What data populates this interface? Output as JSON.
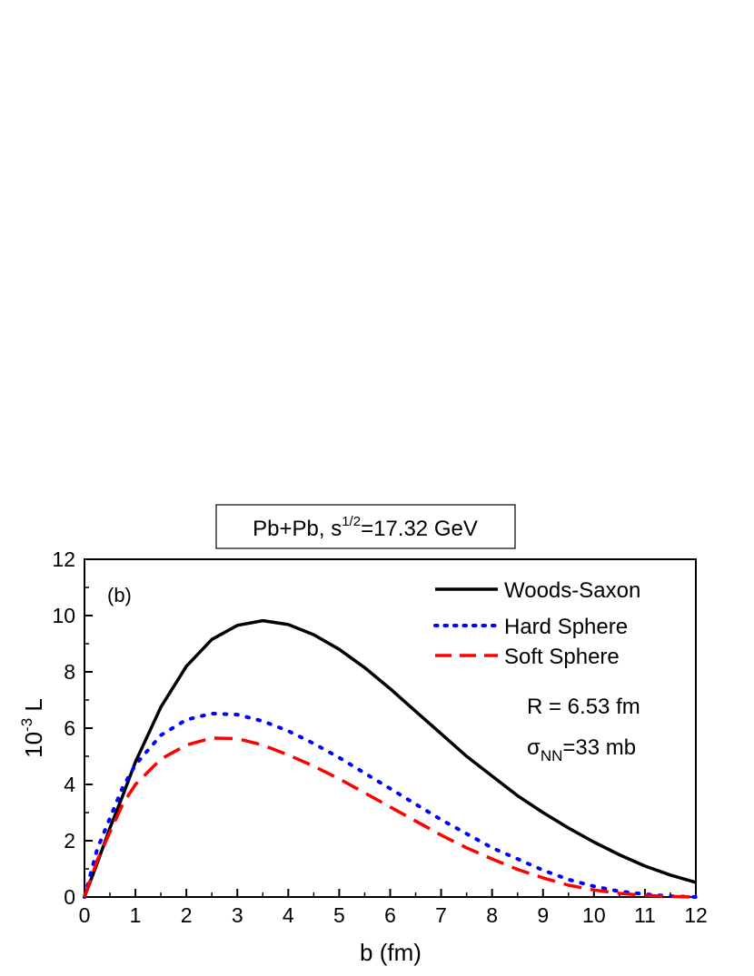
{
  "chart_data": {
    "type": "line",
    "title_box": {
      "base": "Pb+Pb, s",
      "sup": "1/2",
      "rest": "=17.32 GeV"
    },
    "panel_label": "(b)",
    "xlabel": "b (fm)",
    "ylabel": {
      "prefix": "10",
      "sup": "-3",
      "suffix": " L"
    },
    "xlim": [
      0,
      12
    ],
    "ylim": [
      0,
      12
    ],
    "xticks": [
      "0",
      "1",
      "2",
      "3",
      "4",
      "5",
      "6",
      "7",
      "8",
      "9",
      "10",
      "11",
      "12"
    ],
    "yticks": [
      "0",
      "2",
      "4",
      "6",
      "8",
      "10",
      "12"
    ],
    "grid": false,
    "legend_position": "top-right",
    "annotations": {
      "radius": "R = 6.53 fm",
      "sigma": {
        "symbol": "σ",
        "sub": "NN",
        "rest": "=33 mb"
      }
    },
    "series": [
      {
        "name": "Woods-Saxon",
        "color": "#000000",
        "style": "solid",
        "x": [
          0,
          0.25,
          0.5,
          0.75,
          1.0,
          1.5,
          2.0,
          2.5,
          3.0,
          3.5,
          4.0,
          4.5,
          5.0,
          5.5,
          6.0,
          6.5,
          7.0,
          7.5,
          8.0,
          8.5,
          9.0,
          9.5,
          10.0,
          10.5,
          11.0,
          11.5,
          12.0
        ],
        "y": [
          0,
          1.2,
          2.45,
          3.6,
          4.8,
          6.75,
          8.2,
          9.15,
          9.65,
          9.82,
          9.68,
          9.32,
          8.8,
          8.15,
          7.4,
          6.6,
          5.8,
          5.0,
          4.3,
          3.6,
          3.0,
          2.45,
          1.95,
          1.5,
          1.1,
          0.78,
          0.52
        ]
      },
      {
        "name": "Hard Sphere",
        "color": "#0000ff",
        "style": "dotted",
        "x": [
          0,
          0.25,
          0.5,
          0.75,
          1.0,
          1.5,
          2.0,
          2.5,
          3.0,
          3.5,
          4.0,
          4.5,
          5.0,
          5.5,
          6.0,
          6.5,
          7.0,
          7.5,
          8.0,
          8.5,
          9.0,
          9.5,
          10.0,
          10.5,
          11.0,
          11.5,
          12.0
        ],
        "y": [
          0,
          1.7,
          2.8,
          3.9,
          4.7,
          5.75,
          6.3,
          6.52,
          6.48,
          6.25,
          5.9,
          5.45,
          4.95,
          4.4,
          3.85,
          3.3,
          2.75,
          2.25,
          1.75,
          1.35,
          0.95,
          0.62,
          0.38,
          0.2,
          0.1,
          0.03,
          0.0
        ]
      },
      {
        "name": "Soft Sphere",
        "color": "#ff0000",
        "style": "dashed",
        "x": [
          0,
          0.25,
          0.5,
          0.75,
          1.0,
          1.5,
          2.0,
          2.5,
          3.0,
          3.5,
          4.0,
          4.5,
          5.0,
          5.5,
          6.0,
          6.5,
          7.0,
          7.5,
          8.0,
          8.5,
          9.0,
          9.5,
          10.0,
          10.5,
          11.0,
          11.5,
          12.0
        ],
        "y": [
          0,
          1.3,
          2.3,
          3.3,
          4.0,
          4.9,
          5.4,
          5.65,
          5.63,
          5.4,
          5.05,
          4.65,
          4.2,
          3.7,
          3.2,
          2.7,
          2.2,
          1.75,
          1.35,
          0.98,
          0.68,
          0.42,
          0.25,
          0.13,
          0.06,
          0.02,
          0.0
        ]
      }
    ]
  }
}
